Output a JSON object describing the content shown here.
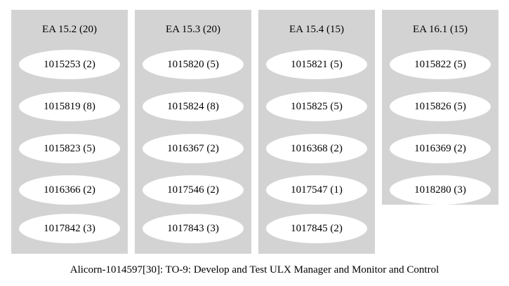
{
  "clusters": [
    {
      "title": "EA 15.2 (20)",
      "nodes": [
        "1015253 (2)",
        "1015819 (8)",
        "1015823 (5)",
        "1016366 (2)",
        "1017842 (3)"
      ]
    },
    {
      "title": "EA 15.3 (20)",
      "nodes": [
        "1015820 (5)",
        "1015824 (8)",
        "1016367 (2)",
        "1017546 (2)",
        "1017843 (3)"
      ]
    },
    {
      "title": "EA 15.4 (15)",
      "nodes": [
        "1015821 (5)",
        "1015825 (5)",
        "1016368 (2)",
        "1017547 (1)",
        "1017845 (2)"
      ]
    },
    {
      "title": "EA 16.1 (15)",
      "nodes": [
        "1015822 (5)",
        "1015826 (5)",
        "1016369 (2)",
        "1018280 (3)"
      ]
    }
  ],
  "caption": "Alicorn-1014597[30]: TO-9: Develop and Test ULX Manager and Monitor and Control",
  "colors": {
    "cluster_fill": "#d3d3d3",
    "node_fill": "#ffffff",
    "background": "#ffffff"
  }
}
